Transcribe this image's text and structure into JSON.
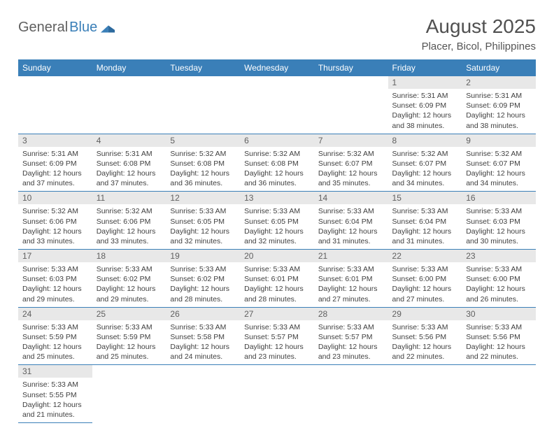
{
  "logo": {
    "general": "General",
    "blue": "Blue"
  },
  "title": "August 2025",
  "location": "Placer, Bicol, Philippines",
  "header_bg": "#3a7fb8",
  "daynum_bg": "#e8e8e8",
  "text_color": "#404040",
  "day_names": [
    "Sunday",
    "Monday",
    "Tuesday",
    "Wednesday",
    "Thursday",
    "Friday",
    "Saturday"
  ],
  "weeks": [
    [
      null,
      null,
      null,
      null,
      null,
      {
        "n": "1",
        "sr": "5:31 AM",
        "ss": "6:09 PM",
        "dh": "12",
        "dm": "38"
      },
      {
        "n": "2",
        "sr": "5:31 AM",
        "ss": "6:09 PM",
        "dh": "12",
        "dm": "38"
      }
    ],
    [
      {
        "n": "3",
        "sr": "5:31 AM",
        "ss": "6:09 PM",
        "dh": "12",
        "dm": "37"
      },
      {
        "n": "4",
        "sr": "5:31 AM",
        "ss": "6:08 PM",
        "dh": "12",
        "dm": "37"
      },
      {
        "n": "5",
        "sr": "5:32 AM",
        "ss": "6:08 PM",
        "dh": "12",
        "dm": "36"
      },
      {
        "n": "6",
        "sr": "5:32 AM",
        "ss": "6:08 PM",
        "dh": "12",
        "dm": "36"
      },
      {
        "n": "7",
        "sr": "5:32 AM",
        "ss": "6:07 PM",
        "dh": "12",
        "dm": "35"
      },
      {
        "n": "8",
        "sr": "5:32 AM",
        "ss": "6:07 PM",
        "dh": "12",
        "dm": "34"
      },
      {
        "n": "9",
        "sr": "5:32 AM",
        "ss": "6:07 PM",
        "dh": "12",
        "dm": "34"
      }
    ],
    [
      {
        "n": "10",
        "sr": "5:32 AM",
        "ss": "6:06 PM",
        "dh": "12",
        "dm": "33"
      },
      {
        "n": "11",
        "sr": "5:32 AM",
        "ss": "6:06 PM",
        "dh": "12",
        "dm": "33"
      },
      {
        "n": "12",
        "sr": "5:33 AM",
        "ss": "6:05 PM",
        "dh": "12",
        "dm": "32"
      },
      {
        "n": "13",
        "sr": "5:33 AM",
        "ss": "6:05 PM",
        "dh": "12",
        "dm": "32"
      },
      {
        "n": "14",
        "sr": "5:33 AM",
        "ss": "6:04 PM",
        "dh": "12",
        "dm": "31"
      },
      {
        "n": "15",
        "sr": "5:33 AM",
        "ss": "6:04 PM",
        "dh": "12",
        "dm": "31"
      },
      {
        "n": "16",
        "sr": "5:33 AM",
        "ss": "6:03 PM",
        "dh": "12",
        "dm": "30"
      }
    ],
    [
      {
        "n": "17",
        "sr": "5:33 AM",
        "ss": "6:03 PM",
        "dh": "12",
        "dm": "29"
      },
      {
        "n": "18",
        "sr": "5:33 AM",
        "ss": "6:02 PM",
        "dh": "12",
        "dm": "29"
      },
      {
        "n": "19",
        "sr": "5:33 AM",
        "ss": "6:02 PM",
        "dh": "12",
        "dm": "28"
      },
      {
        "n": "20",
        "sr": "5:33 AM",
        "ss": "6:01 PM",
        "dh": "12",
        "dm": "28"
      },
      {
        "n": "21",
        "sr": "5:33 AM",
        "ss": "6:01 PM",
        "dh": "12",
        "dm": "27"
      },
      {
        "n": "22",
        "sr": "5:33 AM",
        "ss": "6:00 PM",
        "dh": "12",
        "dm": "27"
      },
      {
        "n": "23",
        "sr": "5:33 AM",
        "ss": "6:00 PM",
        "dh": "12",
        "dm": "26"
      }
    ],
    [
      {
        "n": "24",
        "sr": "5:33 AM",
        "ss": "5:59 PM",
        "dh": "12",
        "dm": "25"
      },
      {
        "n": "25",
        "sr": "5:33 AM",
        "ss": "5:59 PM",
        "dh": "12",
        "dm": "25"
      },
      {
        "n": "26",
        "sr": "5:33 AM",
        "ss": "5:58 PM",
        "dh": "12",
        "dm": "24"
      },
      {
        "n": "27",
        "sr": "5:33 AM",
        "ss": "5:57 PM",
        "dh": "12",
        "dm": "23"
      },
      {
        "n": "28",
        "sr": "5:33 AM",
        "ss": "5:57 PM",
        "dh": "12",
        "dm": "23"
      },
      {
        "n": "29",
        "sr": "5:33 AM",
        "ss": "5:56 PM",
        "dh": "12",
        "dm": "22"
      },
      {
        "n": "30",
        "sr": "5:33 AM",
        "ss": "5:56 PM",
        "dh": "12",
        "dm": "22"
      }
    ],
    [
      {
        "n": "31",
        "sr": "5:33 AM",
        "ss": "5:55 PM",
        "dh": "12",
        "dm": "21"
      },
      null,
      null,
      null,
      null,
      null,
      null
    ]
  ],
  "labels": {
    "sunrise": "Sunrise:",
    "sunset": "Sunset:",
    "daylight_pre": "Daylight:",
    "hours": "hours",
    "and": "and",
    "minutes": "minutes."
  }
}
